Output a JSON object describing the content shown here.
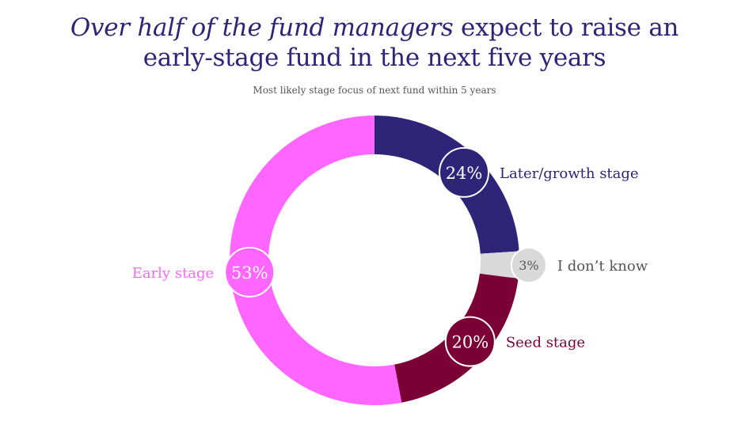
{
  "title": {
    "italic": "Over half of the fund managers",
    "rest": " expect to raise an",
    "line2": "early-stage fund in the next five years"
  },
  "subtitle": "Most likely stage focus of next fund within 5 years",
  "chart_data": {
    "type": "pie",
    "style": "donut",
    "title": "Over half of the fund managers expect to raise an early-stage fund in the next five years",
    "subtitle": "Most likely stage focus of next fund within 5 years",
    "slices": [
      {
        "name": "Later/growth stage",
        "value": 24,
        "label": "24%",
        "color": "#2e2478",
        "text_color": "#2e2478"
      },
      {
        "name": "I don’t know",
        "value": 3,
        "label": "3%",
        "color": "#d9d9d9",
        "text_color": "#555555"
      },
      {
        "name": "Seed stage",
        "value": 20,
        "label": "20%",
        "color": "#7a0036",
        "text_color": "#7a0036"
      },
      {
        "name": "Early stage",
        "value": 53,
        "label": "53%",
        "color": "#ff66ff",
        "text_color": "#ff66ff"
      }
    ]
  }
}
